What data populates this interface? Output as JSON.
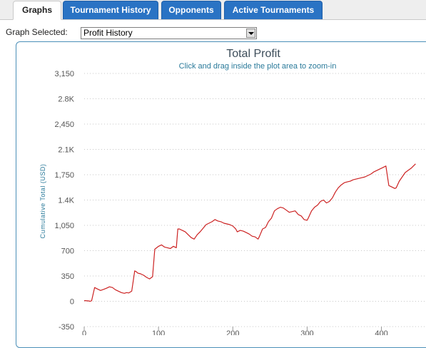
{
  "tabs": [
    {
      "label": "Graphs"
    },
    {
      "label": "Tournament History"
    },
    {
      "label": "Opponents"
    },
    {
      "label": "Active Tournaments"
    }
  ],
  "graph_selector": {
    "label": "Graph Selected:",
    "value": "Profit History"
  },
  "chart_data": {
    "type": "line",
    "title": "Total Profit",
    "subtitle": "Click and drag inside the plot area to zoom-in",
    "ylabel": "Cumulative Total (USD)",
    "xlabel": "",
    "ylim": [
      -350,
      3150
    ],
    "xlim": [
      0,
      460
    ],
    "y_ticks": [
      3150,
      2800,
      2450,
      2100,
      1750,
      1400,
      1050,
      700,
      350,
      0,
      -350
    ],
    "y_tick_labels": [
      "3,150",
      "2.8K",
      "2,450",
      "2.1K",
      "1,750",
      "1.4K",
      "1,050",
      "700",
      "350",
      "0",
      "-350"
    ],
    "x_ticks": [
      0,
      100,
      200,
      300,
      400
    ],
    "x_tick_labels": [
      "0",
      "100",
      "200",
      "300",
      "400"
    ],
    "grid": true,
    "line_color": "#cc2222",
    "series": [
      {
        "x": [
          0,
          6,
          8,
          10,
          14,
          18,
          22,
          26,
          30,
          34,
          38,
          42,
          46,
          50,
          54,
          57,
          60,
          64,
          68,
          70,
          72,
          76,
          80,
          84,
          88,
          92,
          95,
          100,
          104,
          108,
          112,
          116,
          120,
          124,
          126,
          128,
          132,
          136,
          140,
          144,
          148,
          152,
          156,
          160,
          164,
          168,
          172,
          176,
          180,
          184,
          188,
          192,
          196,
          200,
          204,
          206,
          210,
          214,
          218,
          222,
          226,
          230,
          234,
          236,
          240,
          244,
          248,
          252,
          256,
          260,
          264,
          268,
          272,
          276,
          280,
          284,
          288,
          292,
          296,
          300,
          302,
          306,
          310,
          314,
          318,
          322,
          326,
          330,
          334,
          338,
          342,
          346,
          350,
          354,
          358,
          362,
          366,
          370,
          374,
          378,
          382,
          386,
          390,
          394,
          398,
          402,
          406,
          410,
          414,
          418,
          420,
          424,
          428,
          432,
          436,
          440,
          442,
          444,
          446
        ],
        "y": [
          10,
          5,
          0,
          8,
          190,
          170,
          150,
          165,
          180,
          200,
          190,
          160,
          140,
          120,
          110,
          120,
          115,
          140,
          420,
          410,
          390,
          380,
          360,
          330,
          310,
          340,
          720,
          760,
          780,
          750,
          740,
          730,
          760,
          740,
          1000,
          1000,
          980,
          960,
          920,
          880,
          860,
          920,
          960,
          1010,
          1060,
          1080,
          1100,
          1130,
          1110,
          1100,
          1080,
          1070,
          1060,
          1040,
          1000,
          960,
          980,
          970,
          950,
          930,
          900,
          890,
          860,
          900,
          1000,
          1020,
          1100,
          1150,
          1250,
          1280,
          1300,
          1290,
          1260,
          1230,
          1240,
          1250,
          1200,
          1180,
          1130,
          1120,
          1160,
          1250,
          1300,
          1330,
          1380,
          1400,
          1360,
          1380,
          1430,
          1510,
          1570,
          1610,
          1640,
          1650,
          1660,
          1680,
          1690,
          1700,
          1710,
          1720,
          1740,
          1760,
          1790,
          1810,
          1830,
          1850,
          1870,
          1600,
          1580,
          1560,
          1570,
          1660,
          1720,
          1780,
          1810,
          1840,
          1860,
          1880,
          1900
        ],
        "hide": true
      }
    ]
  }
}
